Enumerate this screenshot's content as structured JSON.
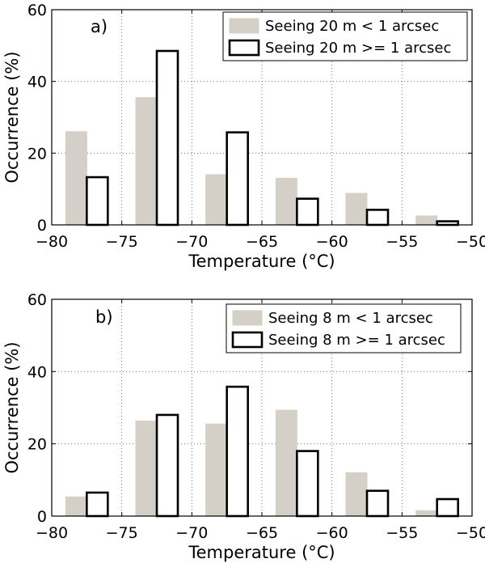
{
  "chart_data": [
    {
      "type": "bar",
      "panel_label": "a)",
      "xlabel": "Temperature (°C)",
      "ylabel": "Occurrence (%)",
      "xlim": [
        -80,
        -50
      ],
      "ylim": [
        0,
        60
      ],
      "xticks": [
        "−80",
        "−75",
        "−70",
        "−65",
        "−60",
        "−55",
        "−50"
      ],
      "yticks": [
        "0",
        "20",
        "40",
        "60"
      ],
      "grid": true,
      "legend_position": "top-right",
      "bin_centers": [
        -77.5,
        -72.5,
        -67.5,
        -62.5,
        -57.5,
        -52.5
      ],
      "series": [
        {
          "name": "Seeing 20 m < 1 arcsec",
          "color": "#d4d0c8",
          "values": [
            26,
            35.5,
            14,
            13,
            8.8,
            2.5
          ]
        },
        {
          "name": "Seeing 20 m >= 1 arcsec",
          "color": "#ffffff",
          "values": [
            13.3,
            48.5,
            25.8,
            7.3,
            4.2,
            1.0
          ]
        }
      ]
    },
    {
      "type": "bar",
      "panel_label": "b)",
      "xlabel": "Temperature (°C)",
      "ylabel": "Occurrence (%)",
      "xlim": [
        -80,
        -50
      ],
      "ylim": [
        0,
        60
      ],
      "xticks": [
        "−80",
        "−75",
        "−70",
        "−65",
        "−60",
        "−55",
        "−50"
      ],
      "yticks": [
        "0",
        "20",
        "40",
        "60"
      ],
      "grid": true,
      "legend_position": "top-right",
      "bin_centers": [
        -77.5,
        -72.5,
        -67.5,
        -62.5,
        -57.5,
        -52.5
      ],
      "series": [
        {
          "name": "Seeing 8 m < 1 arcsec",
          "color": "#d4d0c8",
          "values": [
            5.3,
            26.3,
            25.5,
            29.3,
            12,
            1.5
          ]
        },
        {
          "name": "Seeing 8 m >= 1 arcsec",
          "color": "#ffffff",
          "values": [
            6.5,
            28,
            35.8,
            18,
            7,
            4.7
          ]
        }
      ]
    }
  ]
}
